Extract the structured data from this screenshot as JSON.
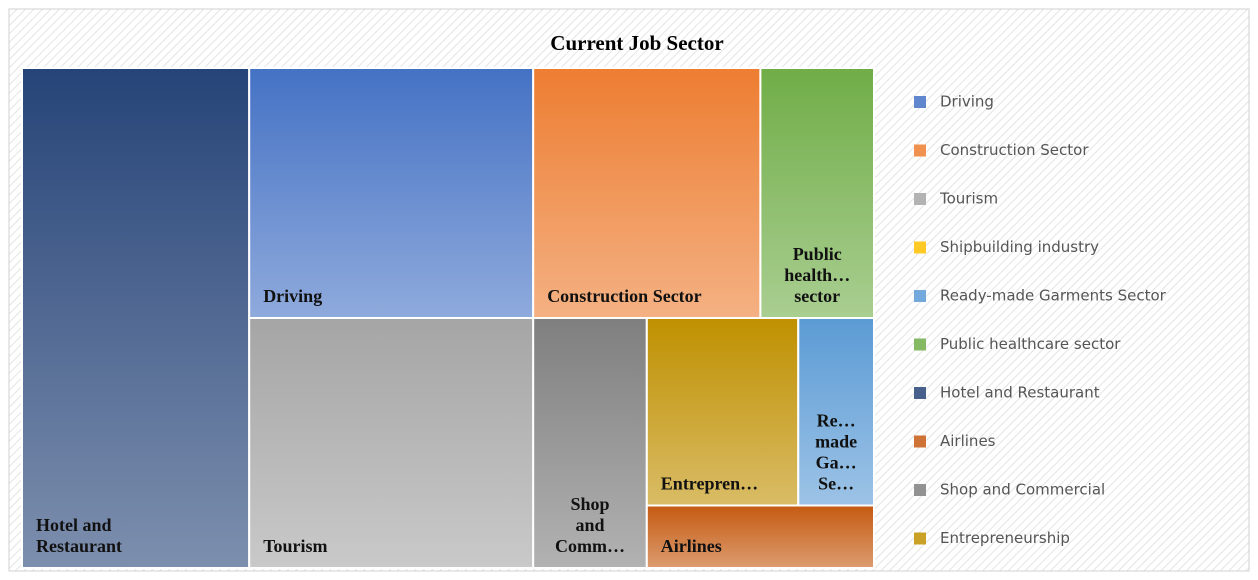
{
  "chart_data": {
    "type": "treemap",
    "title": "Current Job Sector",
    "categories": [
      "Driving",
      "Construction Sector",
      "Tourism",
      "Shipbuilding industry",
      "Ready-made Garments Sector",
      "Public healthcare sector",
      "Hotel and Restaurant",
      "Airlines",
      "Shop and Commercial",
      "Entrepreneurship"
    ],
    "values": [
      5,
      4,
      5,
      0,
      1,
      2,
      8,
      1,
      2,
      2
    ],
    "colors": [
      "#4472c4",
      "#ed7d31",
      "#a5a5a5",
      "#ffc000",
      "#5b9bd5",
      "#70ad47",
      "#264478",
      "#c55a11",
      "#7f7f7f",
      "#bf9000"
    ],
    "tile_labels": [
      [
        "Driving"
      ],
      [
        "Construction Sector"
      ],
      [
        "Tourism"
      ],
      [],
      [
        "Re…",
        "made",
        "Ga…",
        "Se…"
      ],
      [
        "Public",
        "health…",
        "sector"
      ],
      [
        "Hotel and",
        "Restaurant"
      ],
      [
        "Airlines"
      ],
      [
        "Shop",
        "and",
        "Comm…"
      ],
      [
        "Entrepren…"
      ]
    ],
    "legend": "right"
  }
}
